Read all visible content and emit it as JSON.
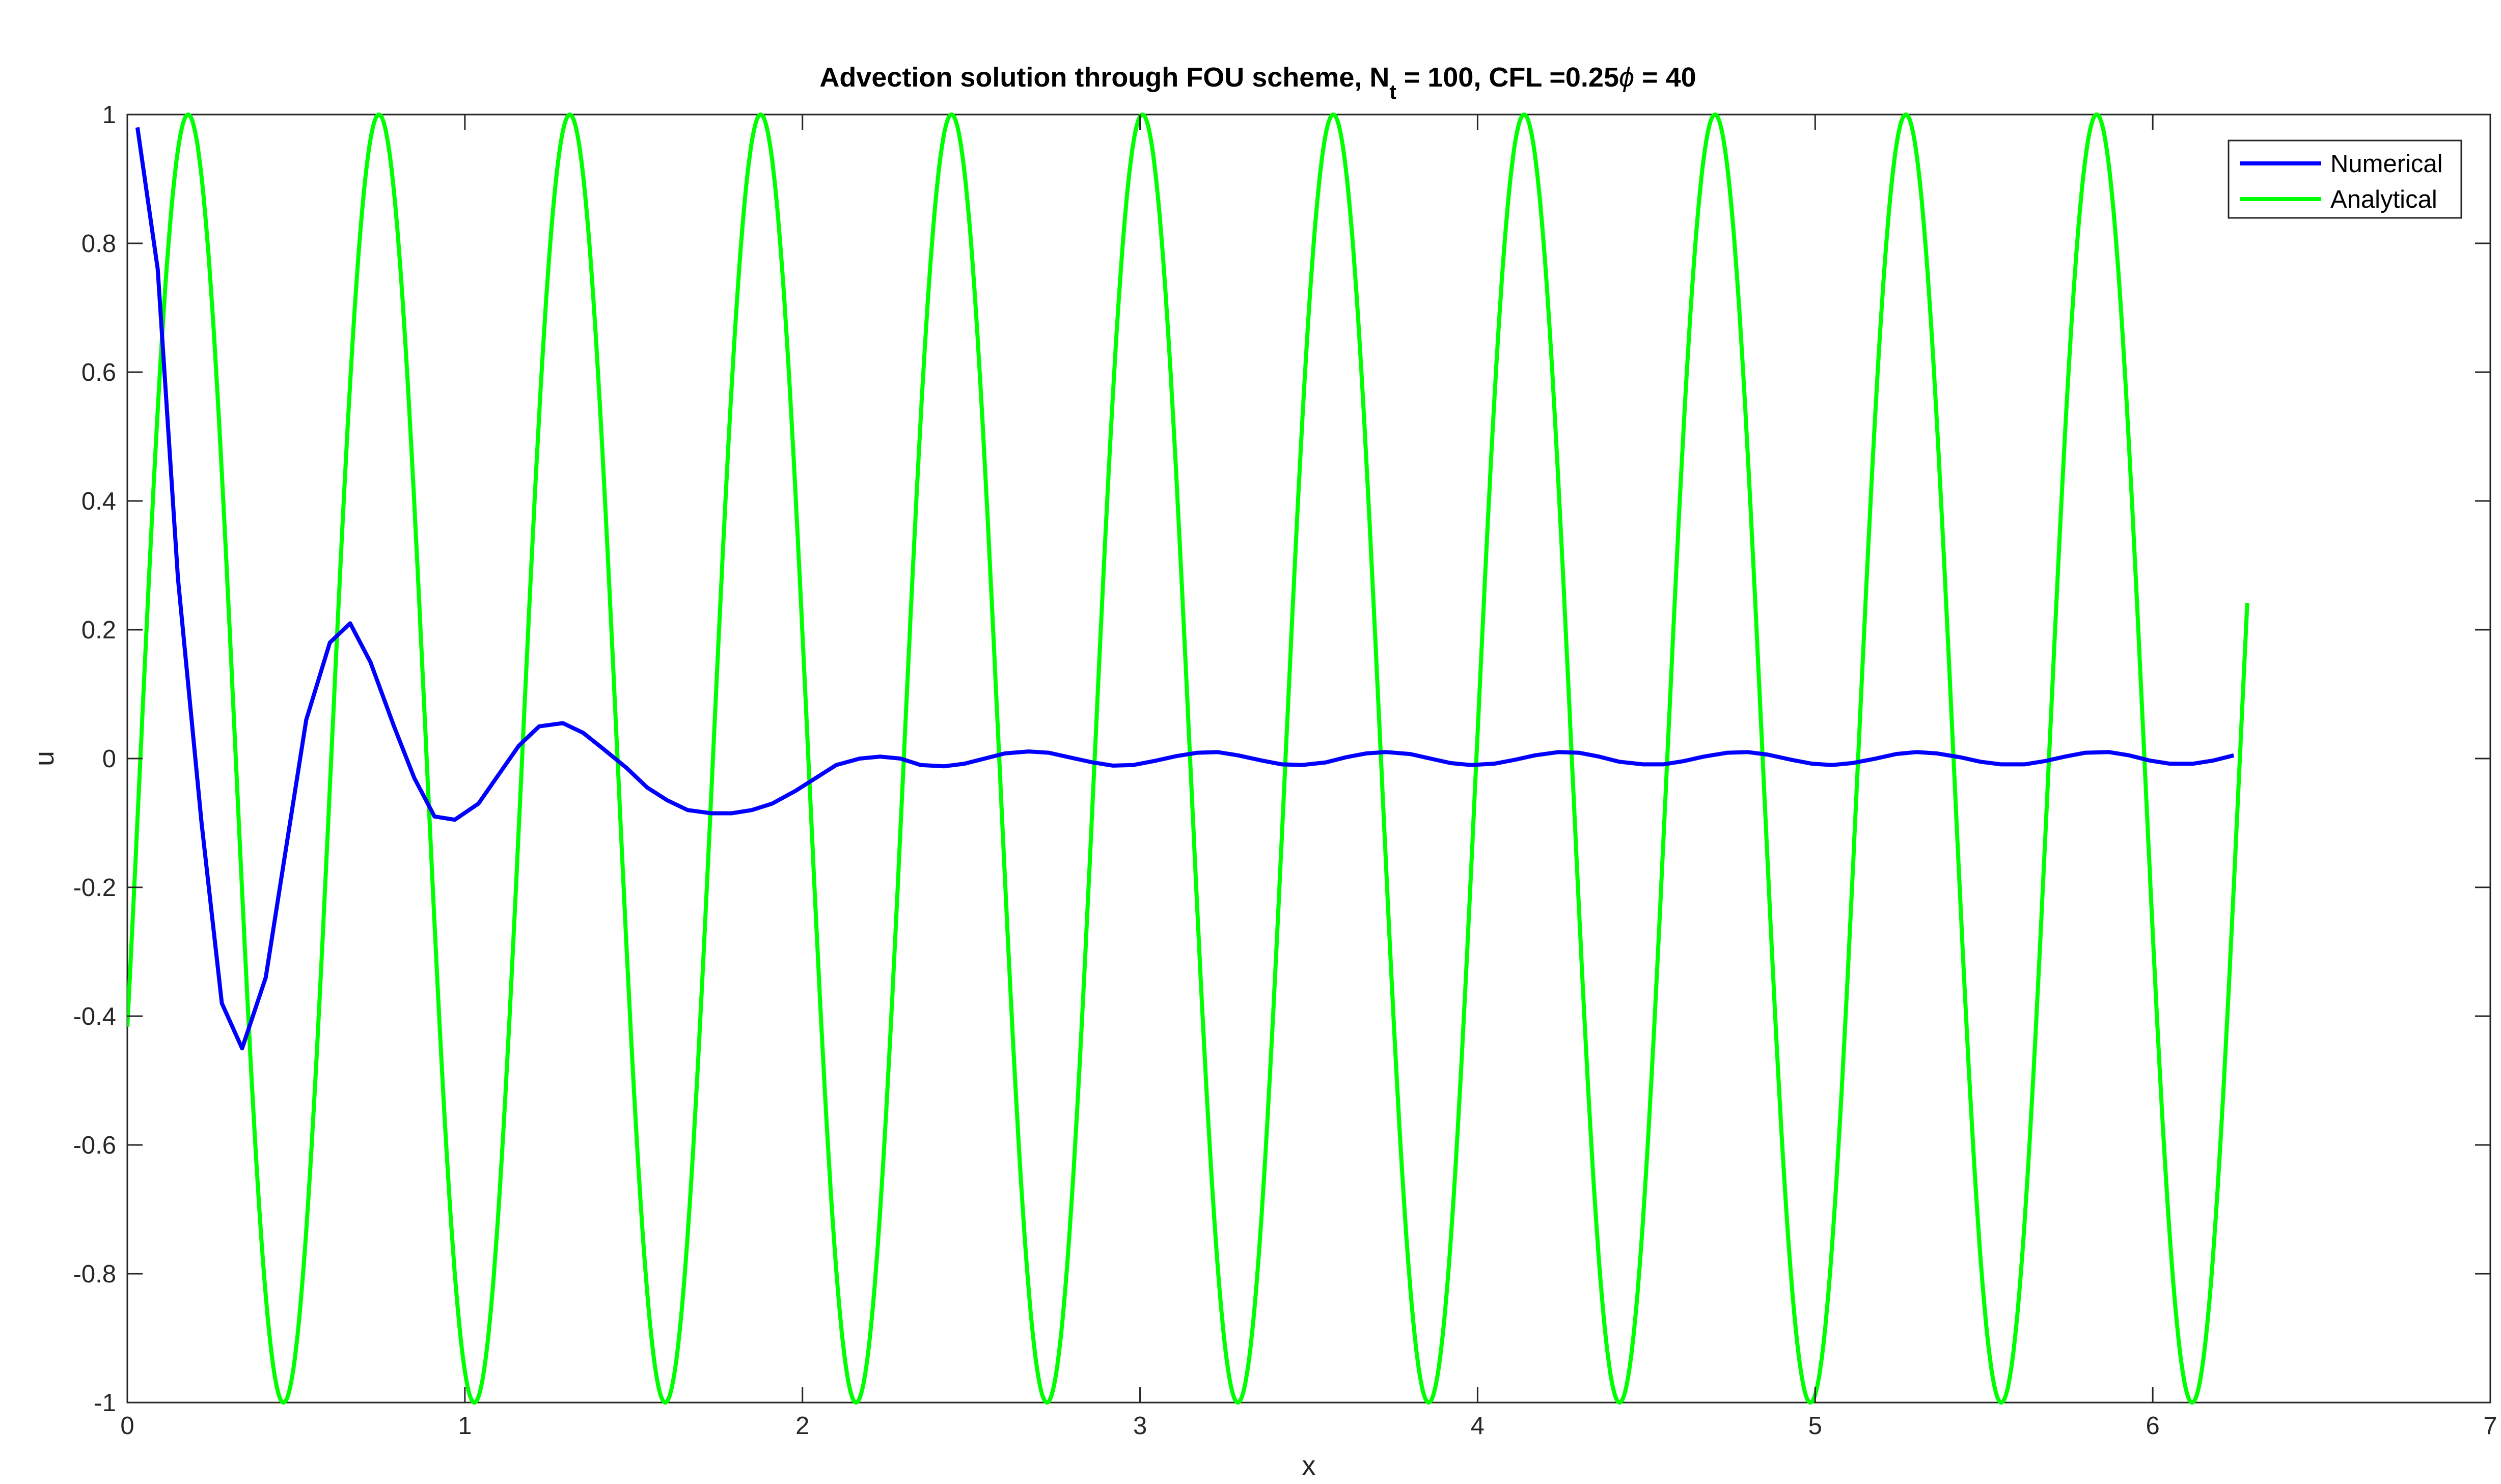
{
  "chart_data": {
    "type": "line",
    "title_parts": {
      "pre": "Advection solution through FOU scheme, N",
      "sub": "t",
      "mid": " = 100, CFL =0.25",
      "phi": "ϕ",
      "post": " = 40"
    },
    "xlabel": "x",
    "ylabel": "u",
    "xlim": [
      0,
      7
    ],
    "ylim": [
      -1,
      1
    ],
    "xticks": [
      0,
      1,
      2,
      3,
      4,
      5,
      6,
      7
    ],
    "xtick_labels": [
      "0",
      "1",
      "2",
      "3",
      "4",
      "5",
      "6",
      "7"
    ],
    "yticks": [
      -1,
      -0.8,
      -0.6,
      -0.4,
      -0.2,
      0,
      0.2,
      0.4,
      0.6,
      0.8,
      1
    ],
    "ytick_labels": [
      "-1",
      "-0.8",
      "-0.6",
      "-0.4",
      "-0.2",
      "0",
      "0.2",
      "0.4",
      "0.6",
      "0.8",
      "1"
    ],
    "grid": false,
    "legend_position": "top-right",
    "series": [
      {
        "name": "Numerical",
        "color": "#0000ff",
        "x": [
          0.03,
          0.09,
          0.15,
          0.22,
          0.28,
          0.34,
          0.41,
          0.47,
          0.53,
          0.6,
          0.66,
          0.72,
          0.79,
          0.85,
          0.91,
          0.97,
          1.04,
          1.1,
          1.16,
          1.22,
          1.29,
          1.35,
          1.41,
          1.48,
          1.54,
          1.6,
          1.66,
          1.73,
          1.79,
          1.85,
          1.91,
          1.98,
          2.04,
          2.1,
          2.17,
          2.23,
          2.29,
          2.35,
          2.42,
          2.48,
          2.54,
          2.6,
          2.67,
          2.73,
          2.79,
          2.86,
          2.92,
          2.98,
          3.04,
          3.11,
          3.17,
          3.23,
          3.29,
          3.36,
          3.42,
          3.48,
          3.55,
          3.61,
          3.67,
          3.73,
          3.8,
          3.86,
          3.92,
          3.98,
          4.05,
          4.11,
          4.17,
          4.24,
          4.3,
          4.36,
          4.42,
          4.49,
          4.55,
          4.61,
          4.67,
          4.74,
          4.8,
          4.86,
          4.93,
          4.99,
          5.05,
          5.11,
          5.18,
          5.24,
          5.3,
          5.36,
          5.43,
          5.49,
          5.55,
          5.62,
          5.68,
          5.74,
          5.8,
          5.87,
          5.93,
          5.99,
          6.05,
          6.12,
          6.18,
          6.24
        ],
        "values": [
          0.98,
          0.76,
          0.28,
          -0.1,
          -0.38,
          -0.45,
          -0.34,
          -0.14,
          0.06,
          0.18,
          0.21,
          0.15,
          0.05,
          -0.03,
          -0.09,
          -0.095,
          -0.07,
          -0.025,
          0.02,
          0.05,
          0.055,
          0.04,
          0.015,
          -0.015,
          -0.045,
          -0.065,
          -0.08,
          -0.085,
          -0.085,
          -0.08,
          -0.07,
          -0.05,
          -0.03,
          -0.01,
          0.0,
          0.003,
          0.0,
          -0.01,
          -0.012,
          -0.008,
          0.0,
          0.008,
          0.011,
          0.009,
          0.002,
          -0.006,
          -0.011,
          -0.01,
          -0.004,
          0.004,
          0.009,
          0.01,
          0.005,
          -0.003,
          -0.009,
          -0.01,
          -0.006,
          0.002,
          0.008,
          0.01,
          0.007,
          0.0,
          -0.007,
          -0.01,
          -0.008,
          -0.002,
          0.005,
          0.01,
          0.009,
          0.003,
          -0.005,
          -0.009,
          -0.009,
          -0.004,
          0.003,
          0.009,
          0.01,
          0.006,
          -0.002,
          -0.008,
          -0.01,
          -0.007,
          0.0,
          0.007,
          0.01,
          0.008,
          0.002,
          -0.005,
          -0.009,
          -0.009,
          -0.004,
          0.003,
          0.009,
          0.01,
          0.005,
          -0.003,
          -0.008,
          -0.008,
          -0.003,
          0.005
        ]
      },
      {
        "name": "Analytical",
        "color": "#00ff00",
        "function": "sin",
        "amplitude": 1,
        "x_start": 0,
        "x_end": 6.28,
        "first_peak_x": 0.18,
        "period": 0.5654
      }
    ]
  }
}
